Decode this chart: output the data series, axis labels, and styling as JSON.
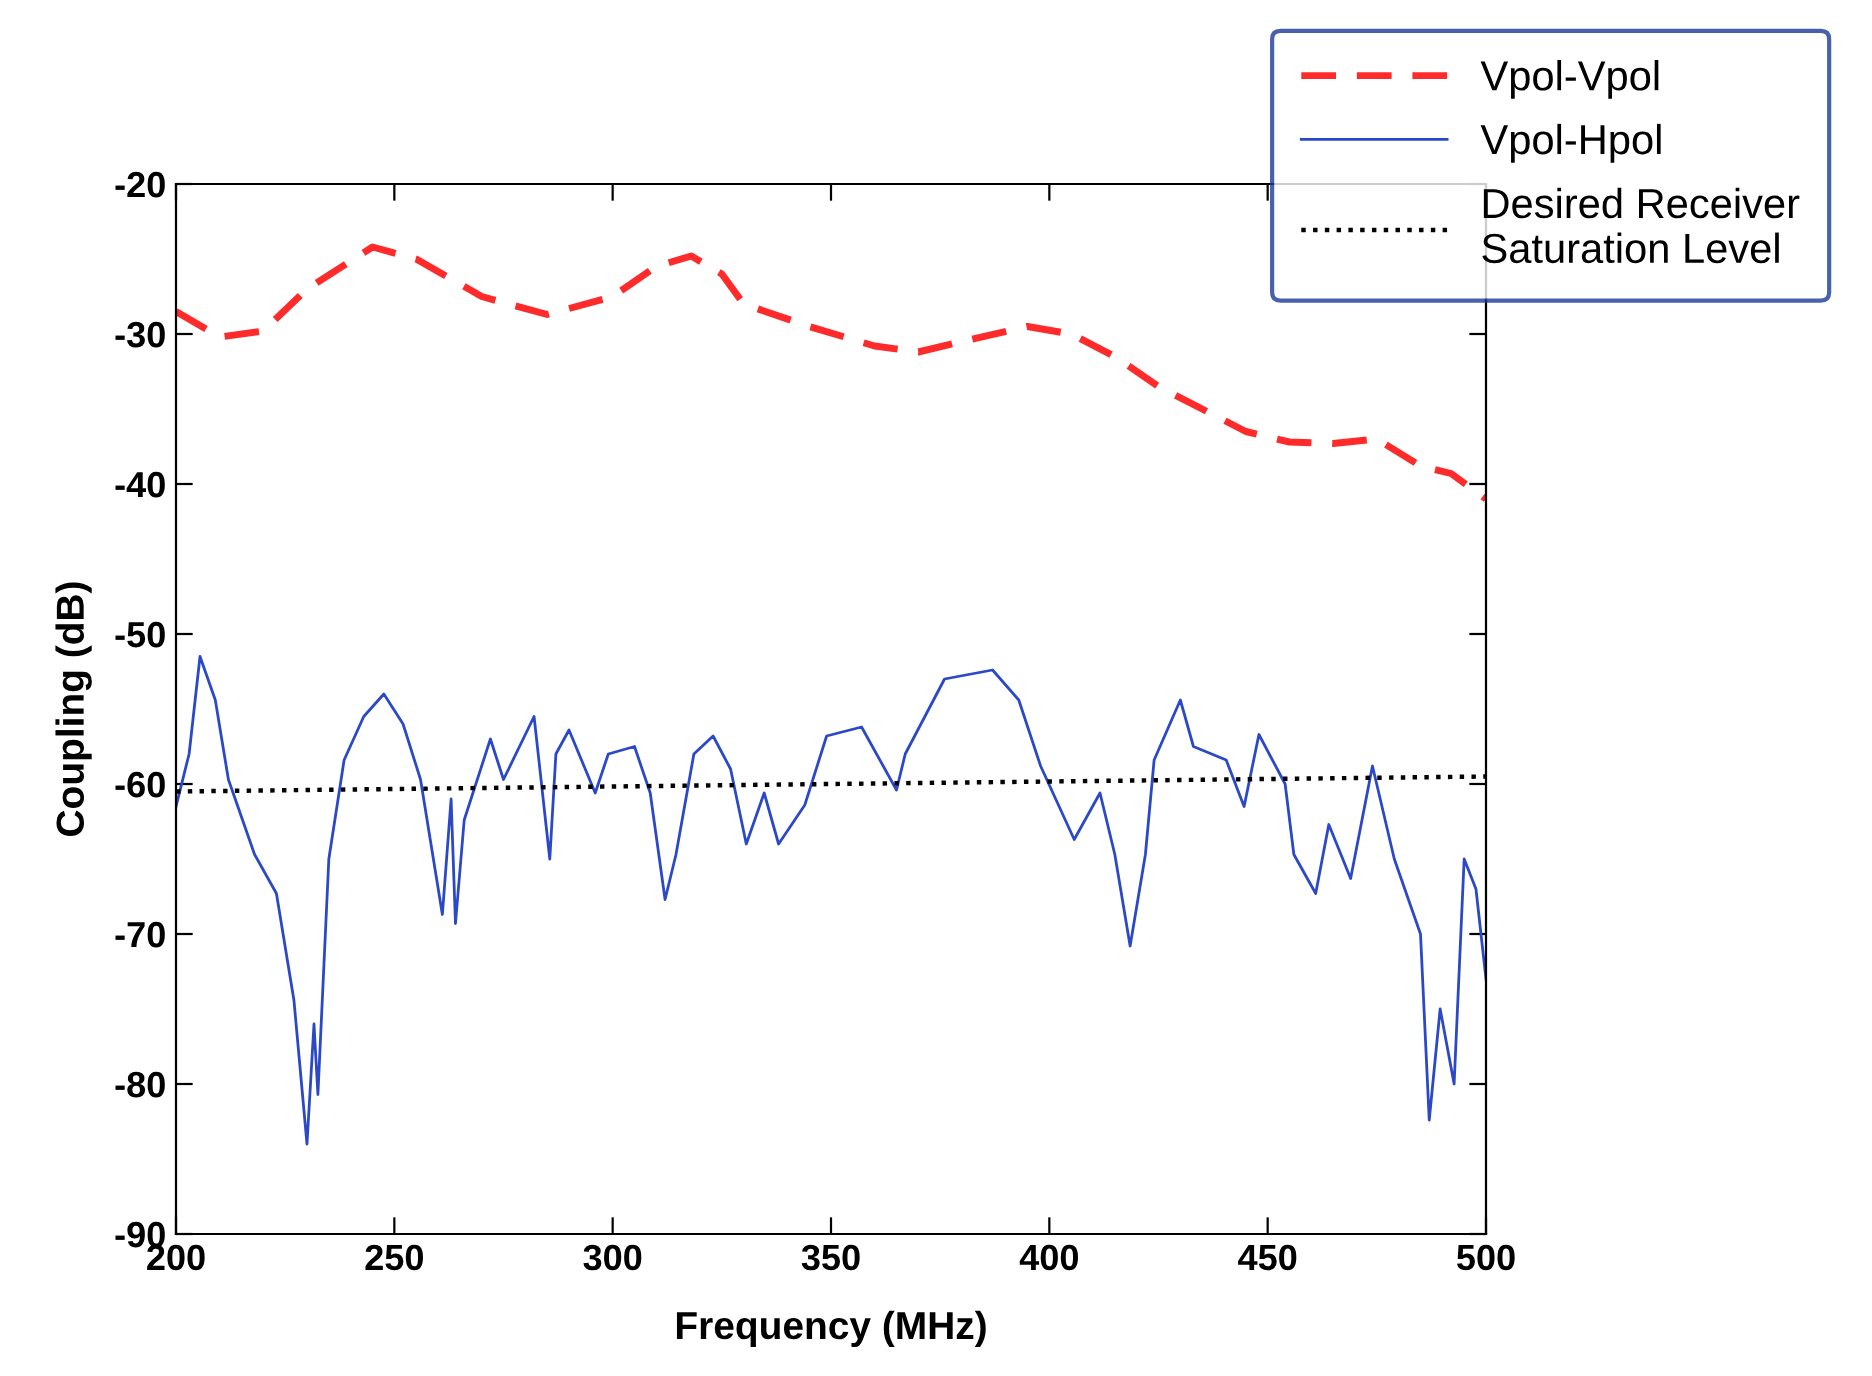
{
  "chart_data": {
    "type": "line",
    "xlabel": "Frequency (MHz)",
    "ylabel": "Coupling (dB)",
    "xlim": [
      200,
      500
    ],
    "xticks": [
      200,
      250,
      300,
      350,
      400,
      450,
      500
    ],
    "ylim": [
      -90,
      -20
    ],
    "yticks": [
      -90,
      -80,
      -70,
      -60,
      -50,
      -40,
      -30,
      -20
    ],
    "grid": false,
    "legend": "top right",
    "series": [
      {
        "name": "Vpol-Vpol",
        "color": "#ff2a2a",
        "line_style": "dashed",
        "x": [
          200,
          210,
          220,
          230,
          245,
          255,
          270,
          285,
          300,
          310,
          318,
          325,
          330,
          345,
          360,
          370,
          380,
          395,
          405,
          415,
          425,
          435,
          445,
          455,
          465,
          475,
          485,
          492,
          500
        ],
        "values": [
          -28.5,
          -30.2,
          -29.8,
          -27,
          -24.2,
          -25,
          -27.5,
          -28.7,
          -27.5,
          -25.5,
          -24.8,
          -26,
          -28,
          -29.5,
          -30.8,
          -31.2,
          -30.5,
          -29.5,
          -30,
          -31.5,
          -33.5,
          -35,
          -36.5,
          -37.2,
          -37.3,
          -37,
          -38.8,
          -39.3,
          -41
        ]
      },
      {
        "name": "Vpol-Hpol",
        "color": "#2a48c8",
        "line_style": "solid",
        "x": [
          200,
          203,
          205.5,
          209,
          212,
          218,
          223,
          227,
          230,
          231.6,
          232.5,
          235,
          238.5,
          243,
          247.6,
          252,
          256,
          261,
          263,
          264,
          266,
          272,
          275,
          282,
          285.6,
          287,
          290,
          296,
          299,
          305,
          308.6,
          312,
          314.5,
          318.6,
          323,
          327,
          330.6,
          334.7,
          338,
          344,
          349,
          357,
          365,
          367,
          376,
          387,
          393,
          398,
          405.7,
          411.6,
          415,
          418.5,
          422,
          424,
          430,
          433,
          440.5,
          444.6,
          448,
          454,
          456,
          461,
          464,
          469,
          474,
          479,
          485,
          487,
          489.5,
          492.7,
          495,
          497.7,
          500
        ],
        "values": [
          -61.5,
          -58,
          -51.5,
          -54.4,
          -59.7,
          -64.7,
          -67.3,
          -74.4,
          -84,
          -76,
          -80.7,
          -65,
          -58.4,
          -55.5,
          -54,
          -56,
          -59.7,
          -68.7,
          -61,
          -69.3,
          -62.4,
          -57,
          -59.7,
          -55.5,
          -65,
          -58,
          -56.4,
          -60.6,
          -58,
          -57.5,
          -60.6,
          -67.7,
          -64.7,
          -58,
          -56.8,
          -59,
          -64,
          -60.6,
          -64,
          -61.4,
          -56.8,
          -56.2,
          -60.4,
          -58,
          -53,
          -52.4,
          -54.4,
          -58.8,
          -63.7,
          -60.6,
          -64.7,
          -70.8,
          -64.7,
          -58.4,
          -54.4,
          -57.5,
          -58.4,
          -61.5,
          -56.7,
          -60,
          -64.7,
          -67.3,
          -62.7,
          -66.3,
          -58.8,
          -65,
          -70,
          -82.4,
          -75,
          -80,
          -65,
          -67,
          -73
        ]
      },
      {
        "name": "Desired Receiver\nSaturation Level",
        "color": "#000000",
        "line_style": "dotted",
        "x": [
          200,
          500
        ],
        "values": [
          -60.5,
          -59.5
        ]
      }
    ]
  }
}
